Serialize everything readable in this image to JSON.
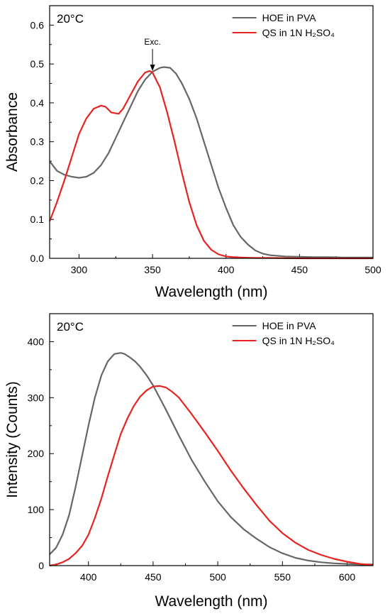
{
  "chart_data": [
    {
      "type": "line",
      "annotation": "20°C",
      "arrow_label": "Exc.",
      "arrow_x": 350,
      "xlabel": "Wavelength (nm)",
      "ylabel": "Absorbance",
      "xlim": [
        280,
        500
      ],
      "ylim": [
        0,
        0.65
      ],
      "xticks": [
        300,
        350,
        400,
        450,
        500
      ],
      "yticks": [
        0.0,
        0.1,
        0.2,
        0.3,
        0.4,
        0.5,
        0.6
      ],
      "ytick_decimals": 1,
      "legend_position": "top-right",
      "series": [
        {
          "name": "HOE in PVA",
          "color": "#666666",
          "x": [
            280,
            285,
            290,
            295,
            300,
            305,
            310,
            315,
            320,
            325,
            330,
            335,
            340,
            345,
            350,
            355,
            358,
            362,
            366,
            370,
            375,
            380,
            385,
            390,
            395,
            400,
            405,
            410,
            415,
            420,
            425,
            430,
            440,
            450,
            460,
            470,
            480,
            490,
            500
          ],
          "y": [
            0.25,
            0.225,
            0.215,
            0.21,
            0.207,
            0.21,
            0.22,
            0.24,
            0.27,
            0.31,
            0.35,
            0.39,
            0.43,
            0.46,
            0.48,
            0.49,
            0.492,
            0.49,
            0.475,
            0.45,
            0.41,
            0.36,
            0.3,
            0.24,
            0.18,
            0.13,
            0.085,
            0.055,
            0.035,
            0.02,
            0.012,
            0.008,
            0.005,
            0.004,
            0.003,
            0.003,
            0.002,
            0.002,
            0.002
          ]
        },
        {
          "name": "QS in 1N H₂SO₄",
          "color": "#e8231f",
          "x": [
            280,
            285,
            290,
            295,
            300,
            305,
            310,
            315,
            318,
            322,
            327,
            330,
            335,
            340,
            345,
            348,
            350,
            355,
            360,
            365,
            370,
            375,
            380,
            385,
            390,
            395,
            400,
            405,
            410,
            420,
            430,
            450,
            470,
            500
          ],
          "y": [
            0.095,
            0.145,
            0.2,
            0.26,
            0.32,
            0.36,
            0.385,
            0.393,
            0.39,
            0.375,
            0.372,
            0.385,
            0.42,
            0.455,
            0.478,
            0.482,
            0.478,
            0.44,
            0.375,
            0.3,
            0.22,
            0.145,
            0.085,
            0.045,
            0.022,
            0.01,
            0.005,
            0.003,
            0.002,
            0.001,
            0.001,
            0.0,
            0.0,
            0.0
          ]
        }
      ]
    },
    {
      "type": "line",
      "annotation": "20°C",
      "xlabel": "Wavelength (nm)",
      "ylabel": "Intensity (Counts)",
      "xlim": [
        370,
        620
      ],
      "ylim": [
        0,
        450
      ],
      "xticks": [
        400,
        450,
        500,
        550,
        600
      ],
      "yticks": [
        0,
        100,
        200,
        300,
        400
      ],
      "ytick_decimals": 0,
      "legend_position": "top-right",
      "series": [
        {
          "name": "HOE in PVA",
          "color": "#666666",
          "x": [
            370,
            375,
            380,
            385,
            390,
            395,
            400,
            405,
            410,
            415,
            420,
            425,
            428,
            432,
            436,
            440,
            445,
            450,
            455,
            460,
            470,
            480,
            490,
            500,
            510,
            520,
            530,
            540,
            550,
            560,
            570,
            580,
            590,
            600,
            610,
            620
          ],
          "y": [
            20,
            32,
            55,
            90,
            140,
            195,
            250,
            300,
            340,
            365,
            378,
            380,
            378,
            372,
            365,
            355,
            340,
            322,
            300,
            278,
            232,
            188,
            150,
            115,
            87,
            65,
            48,
            33,
            22,
            14,
            9,
            6,
            4,
            3,
            2,
            2
          ]
        },
        {
          "name": "QS in 1N H₂SO₄",
          "color": "#e8231f",
          "x": [
            370,
            375,
            380,
            385,
            390,
            395,
            400,
            405,
            410,
            415,
            420,
            425,
            430,
            435,
            440,
            445,
            450,
            455,
            460,
            465,
            470,
            480,
            490,
            500,
            510,
            520,
            530,
            540,
            550,
            560,
            570,
            580,
            590,
            600,
            610,
            620
          ],
          "y": [
            0,
            2,
            6,
            12,
            22,
            35,
            55,
            85,
            120,
            160,
            198,
            235,
            262,
            285,
            302,
            313,
            320,
            321,
            318,
            310,
            300,
            270,
            238,
            205,
            170,
            138,
            108,
            80,
            58,
            41,
            28,
            19,
            12,
            7,
            3,
            1
          ]
        }
      ]
    }
  ]
}
